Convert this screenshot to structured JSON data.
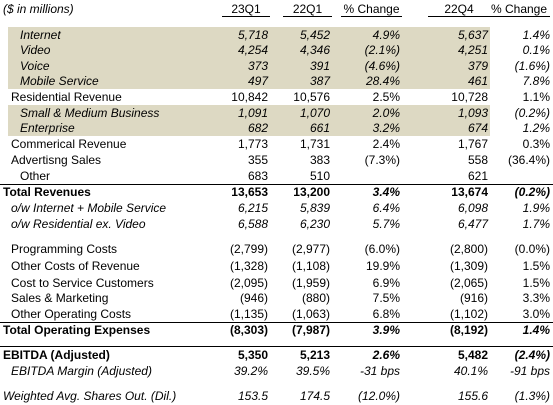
{
  "header": {
    "label": "($ in millions)",
    "columns": [
      "23Q1",
      "22Q1",
      "% Change",
      "22Q4",
      "% Change"
    ]
  },
  "rows": [
    {
      "label": "Internet",
      "cells": [
        "5,718",
        "5,452",
        "4.9%",
        "5,637",
        "1.4%"
      ]
    },
    {
      "label": "Video",
      "cells": [
        "4,254",
        "4,346",
        "(2.1%)",
        "4,251",
        "0.1%"
      ]
    },
    {
      "label": "Voice",
      "cells": [
        "373",
        "391",
        "(4.6%)",
        "379",
        "(1.6%)"
      ]
    },
    {
      "label": "Mobile Service",
      "cells": [
        "497",
        "387",
        "28.4%",
        "461",
        "7.8%"
      ]
    },
    {
      "label": "Residential Revenue",
      "cells": [
        "10,842",
        "10,576",
        "2.5%",
        "10,728",
        "1.1%"
      ]
    },
    {
      "label": "Small & Medium Business",
      "cells": [
        "1,091",
        "1,070",
        "2.0%",
        "1,093",
        "(0.2%)"
      ]
    },
    {
      "label": "Enterprise",
      "cells": [
        "682",
        "661",
        "3.2%",
        "674",
        "1.2%"
      ]
    },
    {
      "label": "Commerical Revenue",
      "cells": [
        "1,773",
        "1,731",
        "2.4%",
        "1,767",
        "0.3%"
      ]
    },
    {
      "label": "Advertisng Sales",
      "cells": [
        "355",
        "383",
        "(7.3%)",
        "558",
        "(36.4%)"
      ]
    },
    {
      "label": "Other",
      "cells": [
        "683",
        "510",
        null,
        "621",
        null
      ]
    },
    {
      "label": "Total Revenues",
      "cells": [
        "13,653",
        "13,200",
        "3.4%",
        "13,674",
        "(0.2%)"
      ]
    },
    {
      "label": "o/w Internet + Mobile Service",
      "cells": [
        "6,215",
        "5,839",
        "6.4%",
        "6,098",
        "1.9%"
      ]
    },
    {
      "label": "o/w Residential ex. Video",
      "cells": [
        "6,588",
        "6,230",
        "5.7%",
        "6,477",
        "1.7%"
      ]
    },
    {
      "label": "Programming Costs",
      "cells": [
        "(2,799)",
        "(2,977)",
        "(6.0%)",
        "(2,800)",
        "(0.0%)"
      ]
    },
    {
      "label": "Other Costs of Revenue",
      "cells": [
        "(1,328)",
        "(1,108)",
        "19.9%",
        "(1,309)",
        "1.5%"
      ]
    },
    {
      "label": "Cost to Service Customers",
      "cells": [
        "(2,095)",
        "(1,959)",
        "6.9%",
        "(2,065)",
        "1.5%"
      ]
    },
    {
      "label": "Sales & Marketing",
      "cells": [
        "(946)",
        "(880)",
        "7.5%",
        "(916)",
        "3.3%"
      ]
    },
    {
      "label": "Other Operating Costs",
      "cells": [
        "(1,135)",
        "(1,063)",
        "6.8%",
        "(1,102)",
        "3.0%"
      ]
    },
    {
      "label": "Total Operating Expenses",
      "cells": [
        "(8,303)",
        "(7,987)",
        "3.9%",
        "(8,192)",
        "1.4%"
      ]
    },
    {
      "label": "EBITDA (Adjusted)",
      "cells": [
        "5,350",
        "5,213",
        "2.6%",
        "5,482",
        "(2.4%)"
      ]
    },
    {
      "label": "EBITDA Margin (Adjusted)",
      "cells": [
        "39.2%",
        "39.5%",
        "-31 bps",
        "40.1%",
        "-91 bps"
      ]
    },
    {
      "label": "Weighted Avg. Shares Out. (Dil.)",
      "cells": [
        "153.5",
        "174.5",
        "(12.0%)",
        "155.6",
        "(1.3%)"
      ]
    }
  ]
}
